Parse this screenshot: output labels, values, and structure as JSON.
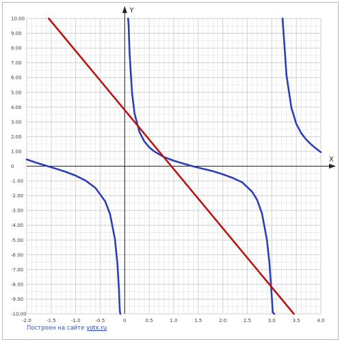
{
  "chart_data": {
    "type": "line",
    "title": "",
    "xlabel": "X",
    "ylabel": "Y",
    "xlim": [
      -2,
      4
    ],
    "ylim": [
      -10,
      10
    ],
    "grid": true,
    "x_ticks": [
      "-2.0",
      "-1.5",
      "-1.0",
      "-0.5",
      "0",
      "0.5",
      "1.0",
      "1.5",
      "2.0",
      "2.5",
      "3.0",
      "3.5",
      "4.0"
    ],
    "y_ticks": [
      "10.00",
      "9.00",
      "8.00",
      "7.00",
      "6.00",
      "5.00",
      "4.00",
      "3.00",
      "2.00",
      "1.00",
      "0",
      "-1.00",
      "-2.00",
      "-3.00",
      "-4.00",
      "-5.00",
      "-6.00",
      "-7.00",
      "-8.00",
      "-9.00",
      "-10.00"
    ],
    "series": [
      {
        "color": "#2b3fb5",
        "branches": [
          {
            "x": [
              -2.0,
              -1.8,
              -1.6,
              -1.4,
              -1.2,
              -1.0,
              -0.8,
              -0.6,
              -0.4,
              -0.3,
              -0.2,
              -0.15,
              -0.12,
              -0.1,
              -0.09
            ],
            "y": [
              0.46,
              0.23,
              0.03,
              -0.17,
              -0.39,
              -0.64,
              -0.97,
              -1.46,
              -2.37,
              -3.23,
              -4.93,
              -6.58,
              -8.2,
              -9.8,
              -10.0
            ]
          },
          {
            "x": [
              0.07,
              0.08,
              0.1,
              0.15,
              0.2,
              0.3,
              0.4,
              0.5,
              0.6,
              0.8,
              1.0,
              1.2,
              1.4,
              1.6,
              1.8,
              2.0,
              2.2,
              2.4,
              2.6,
              2.7,
              2.8,
              2.9,
              2.95,
              3.0,
              3.02,
              3.05
            ],
            "y": [
              10.0,
              9.5,
              7.6,
              4.94,
              3.57,
              2.32,
              1.68,
              1.28,
              1.0,
              0.62,
              0.37,
              0.17,
              -0.02,
              -0.18,
              -0.34,
              -0.55,
              -0.79,
              -1.1,
              -1.74,
              -2.27,
              -3.2,
              -4.98,
              -6.5,
              -8.8,
              -9.9,
              -10.0
            ]
          },
          {
            "x": [
              3.22,
              3.25,
              3.3,
              3.4,
              3.5,
              3.6,
              3.7,
              3.8,
              3.9,
              4.0
            ],
            "y": [
              10.0,
              8.53,
              6.17,
              3.96,
              2.87,
              2.24,
              1.81,
              1.48,
              1.2,
              0.95
            ]
          }
        ]
      },
      {
        "color": "#b81414",
        "x": [
          -1.55,
          3.45
        ],
        "y": [
          10.0,
          -10.0
        ]
      }
    ]
  },
  "footer": {
    "prefix": "Построен на сайте ",
    "link": "yotx.ru"
  }
}
